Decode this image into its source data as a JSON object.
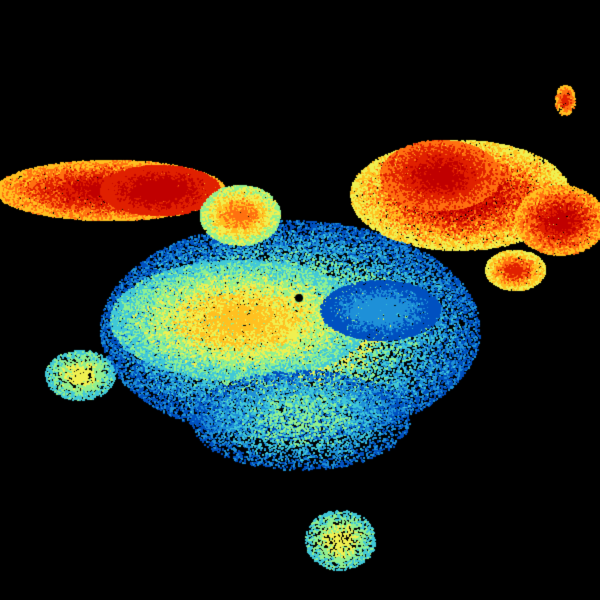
{
  "image": {
    "kind": "radar-reflectivity-scan",
    "background_color": "#000000",
    "palette": [
      "#0050c0",
      "#1e90d8",
      "#40c8d8",
      "#90f090",
      "#f0f050",
      "#ffc020",
      "#ff7010",
      "#e02000",
      "#c00000"
    ]
  }
}
